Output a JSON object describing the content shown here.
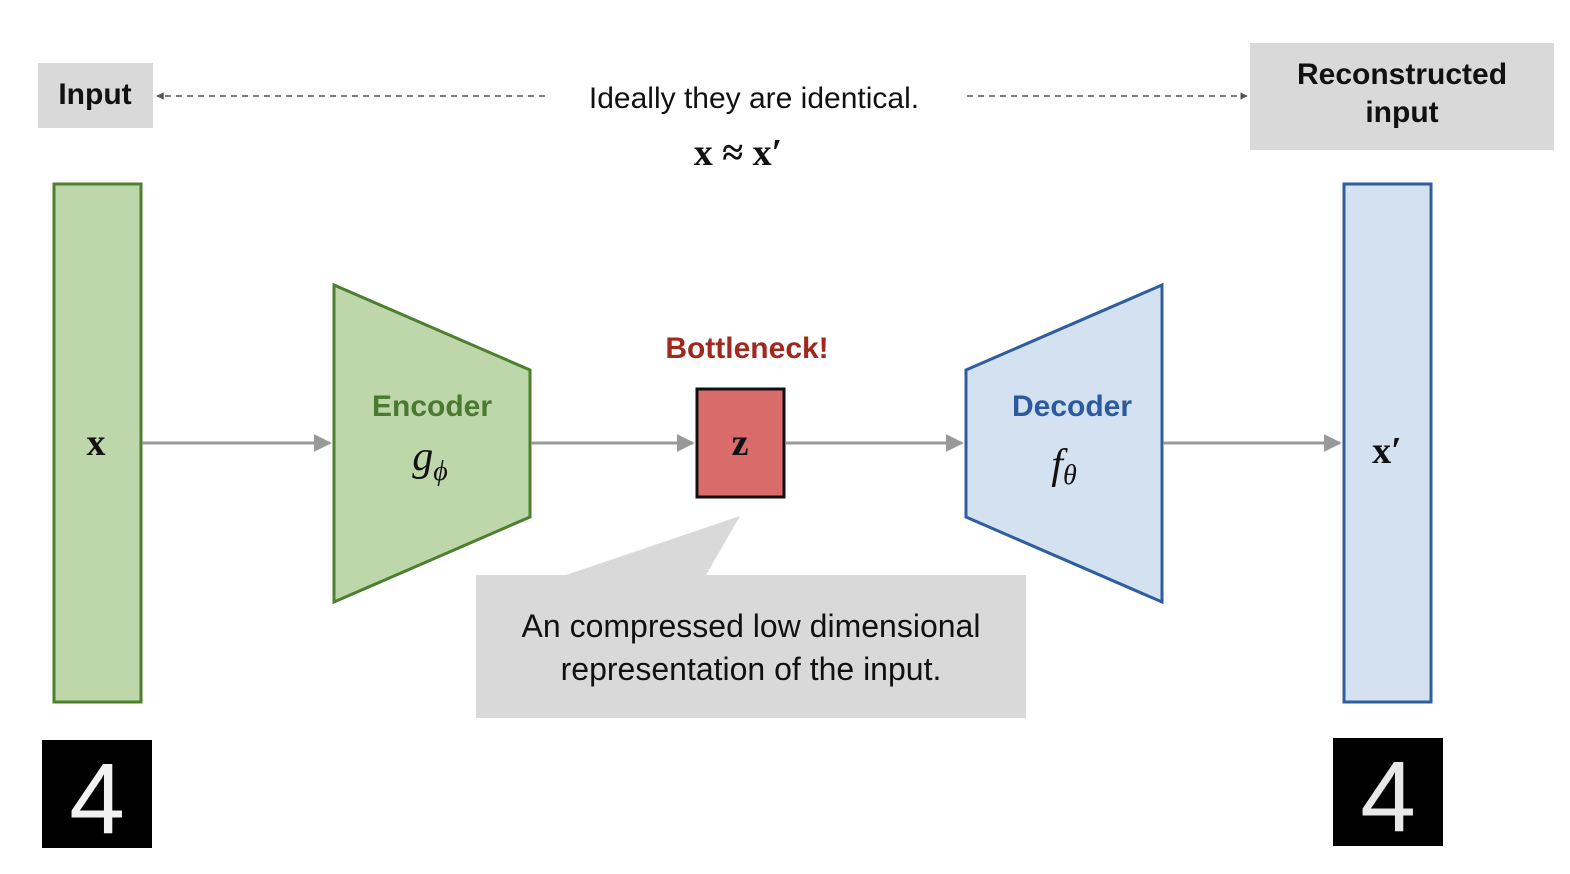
{
  "top": {
    "input_label": "Input",
    "reconstructed_label_line1": "Reconstructed",
    "reconstructed_label_line2": "input",
    "identity_caption": "Ideally they are identical.",
    "identity_formula": "x ≈ x′"
  },
  "input_bar": {
    "symbol": "x"
  },
  "encoder": {
    "title": "Encoder",
    "func_base": "g",
    "func_sub": "ϕ"
  },
  "bottleneck": {
    "title": "Bottleneck!",
    "symbol": "z"
  },
  "decoder": {
    "title": "Decoder",
    "func_base": "f",
    "func_sub": "θ"
  },
  "output_bar": {
    "symbol": "x′"
  },
  "callout": {
    "line1": "An compressed low dimensional",
    "line2": "representation of the input."
  },
  "digits": {
    "input_digit": "4",
    "output_digit": "4"
  },
  "colors": {
    "green_fill": "#bdd7ab",
    "green_stroke": "#4d7f2f",
    "green_text": "#4a7a30",
    "blue_fill": "#d3e1f1",
    "blue_stroke": "#2f5d9e",
    "blue_text": "#2c5aa0",
    "red_fill": "#d96b6b",
    "red_text": "#a1281e",
    "gray_box": "#d9d9d9",
    "arrow_gray": "#999999"
  }
}
